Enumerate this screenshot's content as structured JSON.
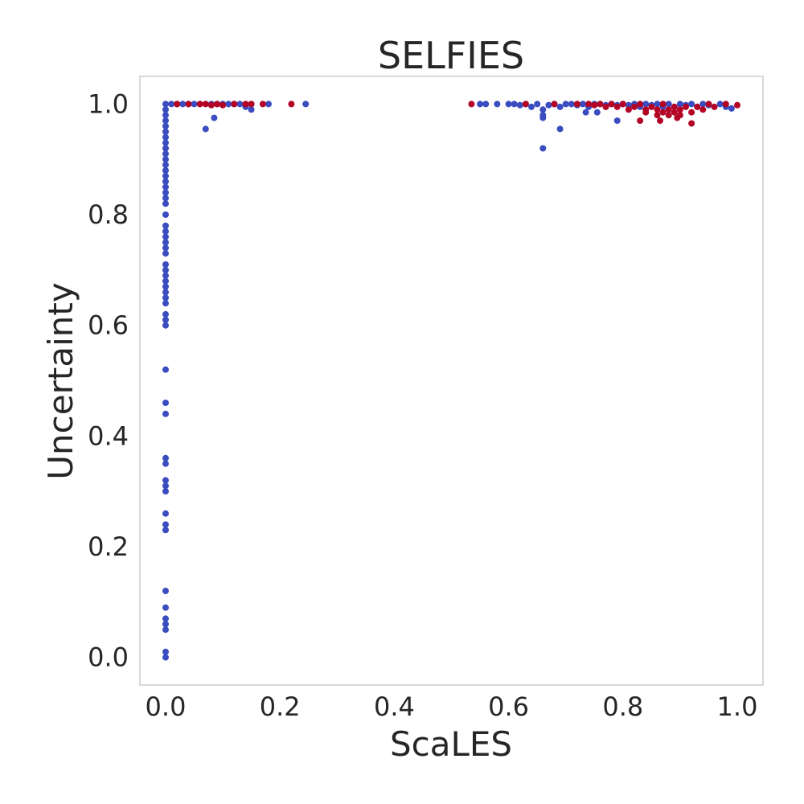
{
  "chart_data": {
    "type": "scatter",
    "title": "SELFIES",
    "xlabel": "ScaLES",
    "ylabel": "Uncertainty",
    "xlim": [
      -0.045,
      1.045
    ],
    "ylim": [
      -0.05,
      1.05
    ],
    "xticks": [
      "0.0",
      "0.2",
      "0.4",
      "0.6",
      "0.8",
      "1.0"
    ],
    "yticks": [
      "0.0",
      "0.2",
      "0.4",
      "0.6",
      "0.8",
      "1.0"
    ],
    "grid": false,
    "colors": {
      "blue": "#3b4cc0",
      "red": "#b40426",
      "frame": "#cccccc",
      "text": "#262626"
    },
    "series": [
      {
        "color": "blue",
        "points": [
          [
            0.0,
            0.0
          ],
          [
            0.0,
            0.01
          ],
          [
            0.0,
            0.05
          ],
          [
            0.0,
            0.06
          ],
          [
            0.0,
            0.07
          ],
          [
            0.0,
            0.09
          ],
          [
            0.0,
            0.12
          ],
          [
            0.0,
            0.23
          ],
          [
            0.0,
            0.24
          ],
          [
            0.0,
            0.26
          ],
          [
            0.0,
            0.3
          ],
          [
            0.0,
            0.31
          ],
          [
            0.0,
            0.32
          ],
          [
            0.0,
            0.35
          ],
          [
            0.0,
            0.36
          ],
          [
            0.0,
            0.44
          ],
          [
            0.0,
            0.46
          ],
          [
            0.0,
            0.52
          ],
          [
            0.0,
            0.6
          ],
          [
            0.0,
            0.61
          ],
          [
            0.0,
            0.62
          ],
          [
            0.0,
            0.64
          ],
          [
            0.0,
            0.65
          ],
          [
            0.0,
            0.66
          ],
          [
            0.0,
            0.67
          ],
          [
            0.0,
            0.68
          ],
          [
            0.0,
            0.69
          ],
          [
            0.0,
            0.7
          ],
          [
            0.0,
            0.71
          ],
          [
            0.0,
            0.73
          ],
          [
            0.0,
            0.74
          ],
          [
            0.0,
            0.75
          ],
          [
            0.0,
            0.76
          ],
          [
            0.0,
            0.77
          ],
          [
            0.0,
            0.78
          ],
          [
            0.0,
            0.8
          ],
          [
            0.0,
            0.82
          ],
          [
            0.0,
            0.83
          ],
          [
            0.0,
            0.84
          ],
          [
            0.0,
            0.85
          ],
          [
            0.0,
            0.86
          ],
          [
            0.0,
            0.87
          ],
          [
            0.0,
            0.88
          ],
          [
            0.0,
            0.89
          ],
          [
            0.0,
            0.9
          ],
          [
            0.0,
            0.91
          ],
          [
            0.0,
            0.92
          ],
          [
            0.0,
            0.93
          ],
          [
            0.0,
            0.94
          ],
          [
            0.0,
            0.95
          ],
          [
            0.0,
            0.96
          ],
          [
            0.0,
            0.97
          ],
          [
            0.0,
            0.98
          ],
          [
            0.0,
            0.99
          ],
          [
            0.0,
            1.0
          ],
          [
            0.01,
            1.0
          ],
          [
            0.02,
            1.0
          ],
          [
            0.03,
            1.0
          ],
          [
            0.04,
            1.0
          ],
          [
            0.05,
            1.0
          ],
          [
            0.06,
            1.0
          ],
          [
            0.08,
            1.0
          ],
          [
            0.09,
            1.0
          ],
          [
            0.1,
            1.0
          ],
          [
            0.11,
            1.0
          ],
          [
            0.12,
            1.0
          ],
          [
            0.13,
            1.0
          ],
          [
            0.14,
            0.995
          ],
          [
            0.15,
            1.0
          ],
          [
            0.18,
            1.0
          ],
          [
            0.245,
            1.0
          ],
          [
            0.07,
            0.955
          ],
          [
            0.085,
            0.975
          ],
          [
            0.15,
            0.99
          ],
          [
            0.55,
            1.0
          ],
          [
            0.56,
            1.0
          ],
          [
            0.58,
            1.0
          ],
          [
            0.6,
            1.0
          ],
          [
            0.61,
            1.0
          ],
          [
            0.62,
            0.998
          ],
          [
            0.63,
            1.0
          ],
          [
            0.64,
            0.995
          ],
          [
            0.65,
            1.0
          ],
          [
            0.66,
            0.99
          ],
          [
            0.67,
            0.998
          ],
          [
            0.68,
            1.0
          ],
          [
            0.69,
            0.995
          ],
          [
            0.7,
            1.0
          ],
          [
            0.71,
            1.0
          ],
          [
            0.72,
            0.998
          ],
          [
            0.73,
            1.0
          ],
          [
            0.74,
            0.995
          ],
          [
            0.75,
            1.0
          ],
          [
            0.76,
            1.0
          ],
          [
            0.77,
            0.998
          ],
          [
            0.78,
            1.0
          ],
          [
            0.79,
            0.998
          ],
          [
            0.8,
            1.0
          ],
          [
            0.81,
            0.998
          ],
          [
            0.82,
            1.0
          ],
          [
            0.83,
            0.995
          ],
          [
            0.84,
            1.0
          ],
          [
            0.85,
            0.998
          ],
          [
            0.86,
            1.0
          ],
          [
            0.87,
            0.995
          ],
          [
            0.88,
            1.0
          ],
          [
            0.89,
            0.995
          ],
          [
            0.9,
            1.0
          ],
          [
            0.91,
            0.998
          ],
          [
            0.92,
            1.0
          ],
          [
            0.93,
            0.995
          ],
          [
            0.94,
            1.0
          ],
          [
            0.95,
            0.998
          ],
          [
            0.97,
            1.0
          ],
          [
            0.98,
            0.995
          ],
          [
            0.99,
            0.992
          ],
          [
            0.66,
            0.92
          ],
          [
            0.66,
            0.975
          ],
          [
            0.66,
            0.98
          ],
          [
            0.69,
            0.955
          ],
          [
            0.735,
            0.985
          ],
          [
            0.755,
            0.985
          ],
          [
            0.79,
            0.97
          ]
        ]
      },
      {
        "color": "red",
        "points": [
          [
            0.02,
            1.0
          ],
          [
            0.04,
            1.0
          ],
          [
            0.06,
            1.0
          ],
          [
            0.07,
            1.0
          ],
          [
            0.08,
            0.998
          ],
          [
            0.09,
            1.0
          ],
          [
            0.1,
            0.998
          ],
          [
            0.12,
            1.0
          ],
          [
            0.14,
            1.0
          ],
          [
            0.15,
            1.0
          ],
          [
            0.17,
            1.0
          ],
          [
            0.22,
            1.0
          ],
          [
            0.535,
            1.0
          ],
          [
            0.63,
            1.0
          ],
          [
            0.68,
            1.0
          ],
          [
            0.72,
            1.0
          ],
          [
            0.74,
            1.0
          ],
          [
            0.75,
            0.998
          ],
          [
            0.76,
            1.0
          ],
          [
            0.77,
            0.995
          ],
          [
            0.78,
            1.0
          ],
          [
            0.79,
            0.995
          ],
          [
            0.8,
            1.0
          ],
          [
            0.81,
            0.99
          ],
          [
            0.82,
            0.995
          ],
          [
            0.83,
            1.0
          ],
          [
            0.84,
            0.99
          ],
          [
            0.84,
            0.985
          ],
          [
            0.85,
            0.995
          ],
          [
            0.86,
            0.98
          ],
          [
            0.86,
            0.99
          ],
          [
            0.87,
            1.0
          ],
          [
            0.87,
            0.985
          ],
          [
            0.88,
            0.99
          ],
          [
            0.88,
            0.98
          ],
          [
            0.89,
            0.995
          ],
          [
            0.89,
            0.985
          ],
          [
            0.9,
            0.99
          ],
          [
            0.9,
            0.98
          ],
          [
            0.91,
            0.995
          ],
          [
            0.92,
            0.985
          ],
          [
            0.92,
            0.965
          ],
          [
            0.93,
            0.995
          ],
          [
            0.94,
            0.99
          ],
          [
            0.95,
            1.0
          ],
          [
            0.96,
            0.995
          ],
          [
            0.98,
            1.0
          ],
          [
            1.0,
            0.998
          ],
          [
            0.83,
            0.97
          ],
          [
            0.865,
            0.97
          ],
          [
            0.895,
            0.975
          ]
        ]
      }
    ]
  }
}
